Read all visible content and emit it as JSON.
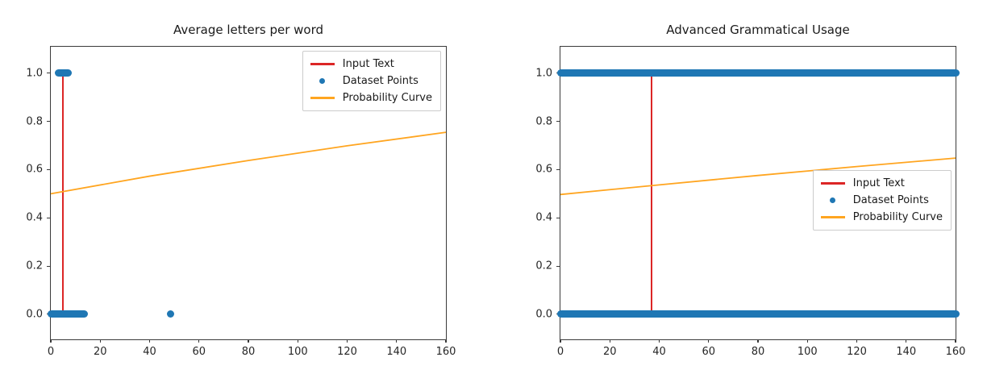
{
  "figure": {
    "background": "#ffffff"
  },
  "colors": {
    "blue": "#1f77b4",
    "red": "#dc2626",
    "orange": "#ffa520",
    "spine": "#3a3a3a",
    "text": "#1a1a1a"
  },
  "legend": {
    "entries": [
      {
        "label": "Input Text",
        "swatch": "line",
        "color": "red"
      },
      {
        "label": "Dataset Points",
        "swatch": "dot",
        "color": "blue"
      },
      {
        "label": "Probability Curve",
        "swatch": "line",
        "color": "orange"
      }
    ]
  },
  "chart_data": [
    {
      "type": "scatter",
      "title": "Average letters per word",
      "xlabel": "",
      "ylabel": "",
      "xlim": [
        0,
        160
      ],
      "ylim": [
        -0.104,
        1.11
      ],
      "grid": false,
      "legend_loc": "upper-right",
      "xticks": [
        {
          "value": 0,
          "label": "0"
        },
        {
          "value": 20,
          "label": "20"
        },
        {
          "value": 40,
          "label": "40"
        },
        {
          "value": 60,
          "label": "60"
        },
        {
          "value": 80,
          "label": "80"
        },
        {
          "value": 100,
          "label": "100"
        },
        {
          "value": 120,
          "label": "120"
        },
        {
          "value": 140,
          "label": "140"
        },
        {
          "value": 160,
          "label": "160"
        }
      ],
      "yticks": [
        {
          "value": 0.0,
          "label": "0.0"
        },
        {
          "value": 0.2,
          "label": "0.2"
        },
        {
          "value": 0.4,
          "label": "0.4"
        },
        {
          "value": 0.6,
          "label": "0.6"
        },
        {
          "value": 0.8,
          "label": "0.8"
        },
        {
          "value": 1.0,
          "label": "1.0"
        }
      ],
      "series": [
        {
          "name": "Input Text",
          "type": "vline",
          "x": 5,
          "y_from": 0,
          "y_to": 1,
          "color": "red"
        },
        {
          "name": "Dataset Points",
          "type": "scatter",
          "color": "blue",
          "clusters": [
            {
              "y": 1,
              "x_min": 3,
              "x_max": 7
            },
            {
              "y": 0,
              "x_min": 0,
              "x_max": 13.5
            }
          ],
          "points": [
            [
              48.5,
              0
            ]
          ]
        },
        {
          "name": "Probability Curve",
          "type": "line",
          "color": "orange",
          "points": [
            [
              0,
              0.5
            ],
            [
              40,
              0.573
            ],
            [
              80,
              0.638
            ],
            [
              120,
              0.699
            ],
            [
              160,
              0.755
            ]
          ]
        }
      ]
    },
    {
      "type": "scatter",
      "title": "Advanced Grammatical Usage",
      "xlabel": "",
      "ylabel": "",
      "xlim": [
        0,
        160
      ],
      "ylim": [
        -0.104,
        1.11
      ],
      "grid": false,
      "legend_loc": "center-right",
      "xticks": [
        {
          "value": 0,
          "label": "0"
        },
        {
          "value": 20,
          "label": "20"
        },
        {
          "value": 40,
          "label": "40"
        },
        {
          "value": 60,
          "label": "60"
        },
        {
          "value": 80,
          "label": "80"
        },
        {
          "value": 100,
          "label": "100"
        },
        {
          "value": 120,
          "label": "120"
        },
        {
          "value": 140,
          "label": "140"
        },
        {
          "value": 160,
          "label": "160"
        }
      ],
      "yticks": [
        {
          "value": 0.0,
          "label": "0.0"
        },
        {
          "value": 0.2,
          "label": "0.2"
        },
        {
          "value": 0.4,
          "label": "0.4"
        },
        {
          "value": 0.6,
          "label": "0.6"
        },
        {
          "value": 0.8,
          "label": "0.8"
        },
        {
          "value": 1.0,
          "label": "1.0"
        }
      ],
      "series": [
        {
          "name": "Input Text",
          "type": "vline",
          "x": 37,
          "y_from": 0,
          "y_to": 1,
          "color": "red"
        },
        {
          "name": "Dataset Points",
          "type": "scatter",
          "color": "blue",
          "clusters": [
            {
              "y": 1,
              "x_min": 0,
              "x_max": 160
            },
            {
              "y": 0,
              "x_min": 0,
              "x_max": 160
            }
          ],
          "points": []
        },
        {
          "name": "Probability Curve",
          "type": "line",
          "color": "orange",
          "points": [
            [
              0,
              0.497
            ],
            [
              40,
              0.537
            ],
            [
              80,
              0.576
            ],
            [
              120,
              0.613
            ],
            [
              160,
              0.648
            ]
          ]
        }
      ]
    }
  ]
}
